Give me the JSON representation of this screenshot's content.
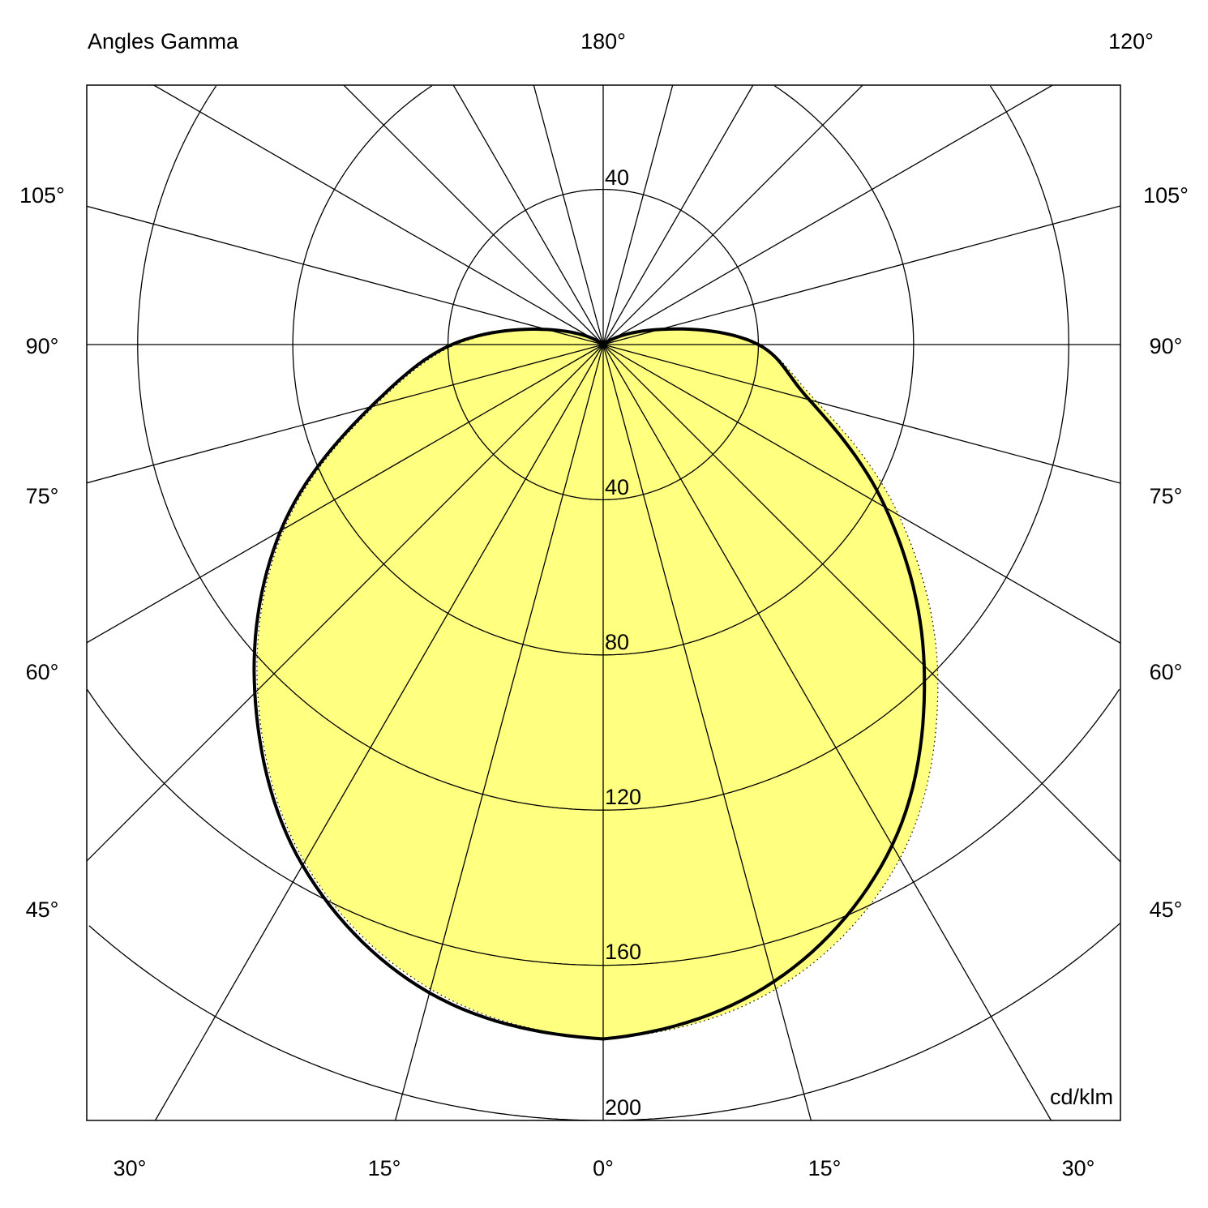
{
  "chart_data": {
    "type": "polar",
    "title": "Angles Gamma",
    "unit": "cd/klm",
    "gamma_step_deg": 15,
    "radial_ticks": [
      40,
      80,
      120,
      160,
      200
    ],
    "rlim": [
      0,
      200
    ],
    "grid": true,
    "angle_labels": {
      "top": [
        "180°",
        "120°"
      ],
      "left": [
        "105°",
        "90°",
        "75°",
        "60°",
        "45°"
      ],
      "right": [
        "105°",
        "90°",
        "75°",
        "60°",
        "45°"
      ],
      "bottom": [
        "30°",
        "15°",
        "0°",
        "15°",
        "30°"
      ]
    },
    "gamma": [
      0,
      15,
      30,
      45,
      60,
      75,
      90,
      105,
      120,
      135,
      150,
      165,
      180
    ],
    "series": [
      {
        "style": "solid-black",
        "left": [
          179,
          173,
          155,
          127,
          96,
          62,
          39,
          15,
          3,
          0,
          0,
          0,
          0
        ],
        "right": [
          179,
          170,
          149,
          117,
          84,
          55,
          40,
          15,
          3,
          0,
          0,
          0,
          0
        ]
      },
      {
        "style": "dotted-filled",
        "left": [
          179,
          172,
          154,
          126,
          95,
          61,
          38,
          14,
          3,
          0,
          0,
          0,
          0
        ],
        "right": [
          179,
          172,
          153,
          122,
          88,
          57,
          40,
          15,
          3,
          0,
          0,
          0,
          0
        ]
      }
    ],
    "colors": {
      "fill": "#ffff80",
      "grid": "#000000",
      "curve": "#000000"
    }
  }
}
